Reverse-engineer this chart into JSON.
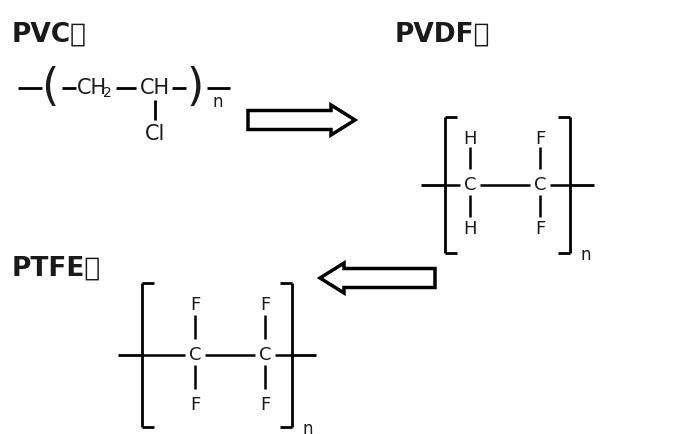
{
  "background": "#ffffff",
  "lc": "#000000",
  "tc": "#1a1a1a",
  "figsize": [
    7.0,
    4.34
  ],
  "dpi": 100,
  "pvc_label": "PVC：",
  "pvdf_label": "PVDF：",
  "ptfe_label": "PTFE："
}
